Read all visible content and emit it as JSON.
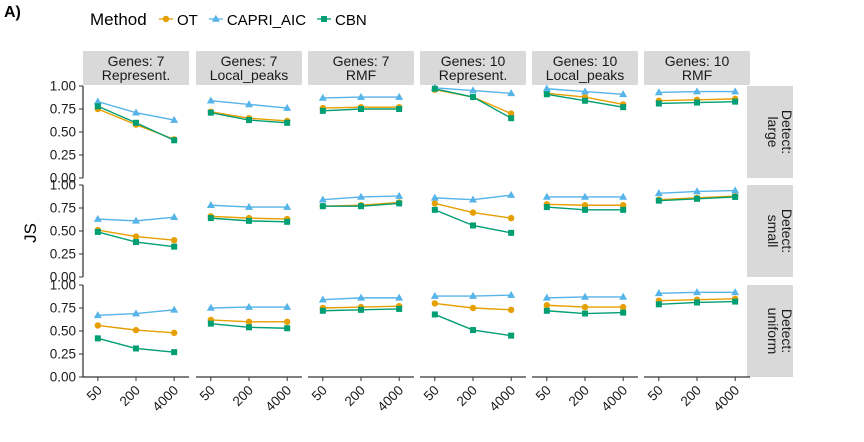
{
  "figure_label": "A)",
  "legend": {
    "title": "Method",
    "entries": [
      {
        "name": "OT",
        "color": "#E69F00",
        "marker": "circle"
      },
      {
        "name": "CAPRI_AIC",
        "color": "#56B4E9",
        "marker": "triangle"
      },
      {
        "name": "CBN",
        "color": "#009E73",
        "marker": "square"
      }
    ]
  },
  "chart_data": {
    "type": "line",
    "ylabel": "JS",
    "ylim": [
      0,
      1.0
    ],
    "yticks": [
      "0.00",
      "0.25",
      "0.50",
      "0.75",
      "1.00"
    ],
    "x": [
      "50",
      "200",
      "4000"
    ],
    "grid": false,
    "legend_position": "top",
    "columns": [
      [
        "Genes: 7",
        "Represent."
      ],
      [
        "Genes: 7",
        "Local_peaks"
      ],
      [
        "Genes: 7",
        "RMF"
      ],
      [
        "Genes: 10",
        "Represent."
      ],
      [
        "Genes: 10",
        "Local_peaks"
      ],
      [
        "Genes: 10",
        "RMF"
      ]
    ],
    "rows": [
      [
        "Detect:",
        "large"
      ],
      [
        "Detect:",
        "small"
      ],
      [
        "Detect:",
        "uniform"
      ]
    ],
    "panels": [
      [
        {
          "OT": [
            0.75,
            0.58,
            0.42
          ],
          "CAPRI_AIC": [
            0.83,
            0.71,
            0.63
          ],
          "CBN": [
            0.78,
            0.6,
            0.41
          ]
        },
        {
          "OT": [
            0.72,
            0.65,
            0.62
          ],
          "CAPRI_AIC": [
            0.84,
            0.8,
            0.76
          ],
          "CBN": [
            0.71,
            0.63,
            0.6
          ]
        },
        {
          "OT": [
            0.76,
            0.77,
            0.77
          ],
          "CAPRI_AIC": [
            0.87,
            0.88,
            0.88
          ],
          "CBN": [
            0.73,
            0.75,
            0.75
          ]
        },
        {
          "OT": [
            0.96,
            0.88,
            0.7
          ],
          "CAPRI_AIC": [
            0.98,
            0.95,
            0.92
          ],
          "CBN": [
            0.97,
            0.88,
            0.65
          ]
        },
        {
          "OT": [
            0.92,
            0.88,
            0.8
          ],
          "CAPRI_AIC": [
            0.97,
            0.94,
            0.91
          ],
          "CBN": [
            0.91,
            0.84,
            0.77
          ]
        },
        {
          "OT": [
            0.84,
            0.85,
            0.86
          ],
          "CAPRI_AIC": [
            0.93,
            0.94,
            0.94
          ],
          "CBN": [
            0.81,
            0.82,
            0.83
          ]
        }
      ],
      [
        {
          "OT": [
            0.51,
            0.44,
            0.4
          ],
          "CAPRI_AIC": [
            0.63,
            0.61,
            0.65
          ],
          "CBN": [
            0.49,
            0.38,
            0.33
          ]
        },
        {
          "OT": [
            0.66,
            0.64,
            0.63
          ],
          "CAPRI_AIC": [
            0.78,
            0.76,
            0.76
          ],
          "CBN": [
            0.64,
            0.61,
            0.6
          ]
        },
        {
          "OT": [
            0.77,
            0.78,
            0.81
          ],
          "CAPRI_AIC": [
            0.84,
            0.87,
            0.88
          ],
          "CBN": [
            0.77,
            0.77,
            0.8
          ]
        },
        {
          "OT": [
            0.8,
            0.7,
            0.64
          ],
          "CAPRI_AIC": [
            0.86,
            0.84,
            0.89
          ],
          "CBN": [
            0.73,
            0.56,
            0.48
          ]
        },
        {
          "OT": [
            0.79,
            0.78,
            0.78
          ],
          "CAPRI_AIC": [
            0.87,
            0.87,
            0.87
          ],
          "CBN": [
            0.76,
            0.73,
            0.73
          ]
        },
        {
          "OT": [
            0.84,
            0.86,
            0.88
          ],
          "CAPRI_AIC": [
            0.91,
            0.93,
            0.94
          ],
          "CBN": [
            0.83,
            0.85,
            0.87
          ]
        }
      ],
      [
        {
          "OT": [
            0.56,
            0.51,
            0.48
          ],
          "CAPRI_AIC": [
            0.67,
            0.69,
            0.73
          ],
          "CBN": [
            0.42,
            0.31,
            0.27
          ]
        },
        {
          "OT": [
            0.62,
            0.6,
            0.6
          ],
          "CAPRI_AIC": [
            0.75,
            0.76,
            0.76
          ],
          "CBN": [
            0.58,
            0.54,
            0.53
          ]
        },
        {
          "OT": [
            0.75,
            0.76,
            0.77
          ],
          "CAPRI_AIC": [
            0.84,
            0.86,
            0.86
          ],
          "CBN": [
            0.72,
            0.73,
            0.74
          ]
        },
        {
          "OT": [
            0.8,
            0.75,
            0.73
          ],
          "CAPRI_AIC": [
            0.88,
            0.88,
            0.89
          ],
          "CBN": [
            0.68,
            0.51,
            0.45
          ]
        },
        {
          "OT": [
            0.78,
            0.76,
            0.76
          ],
          "CAPRI_AIC": [
            0.86,
            0.87,
            0.87
          ],
          "CBN": [
            0.72,
            0.69,
            0.7
          ]
        },
        {
          "OT": [
            0.83,
            0.84,
            0.85
          ],
          "CAPRI_AIC": [
            0.91,
            0.92,
            0.92
          ],
          "CBN": [
            0.79,
            0.81,
            0.82
          ]
        }
      ]
    ]
  }
}
